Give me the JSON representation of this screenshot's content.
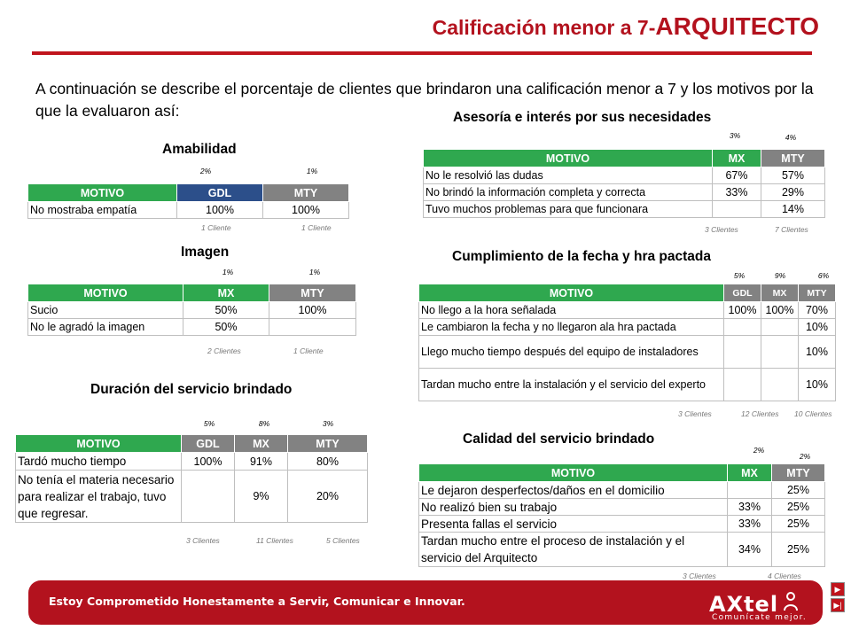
{
  "header": {
    "title_part1": "Calificación menor a 7-",
    "title_part2": "ARQUITECTO"
  },
  "intro": "A continuación se describe el porcentaje de clientes que brindaron una calificación menor a 7 y los motivos por la que la evaluaron así:",
  "amabilidad": {
    "title": "Amabilidad",
    "pcts": [
      "2%",
      "1%"
    ],
    "headers": [
      "MOTIVO",
      "GDL",
      "MTY"
    ],
    "rows": [
      [
        "No mostraba empatía",
        "100%",
        "100%"
      ]
    ],
    "clients": [
      "1 Cliente",
      "1 Cliente"
    ]
  },
  "imagen": {
    "title": "Imagen",
    "pcts": [
      "1%",
      "1%"
    ],
    "headers": [
      "MOTIVO",
      "MX",
      "MTY"
    ],
    "rows": [
      [
        "Sucio",
        "50%",
        "100%"
      ],
      [
        "No le agradó la imagen",
        "50%",
        ""
      ]
    ],
    "clients": [
      "2 Clientes",
      "1 Cliente"
    ]
  },
  "duracion": {
    "title": "Duración del servicio brindado",
    "pcts": [
      "5%",
      "8%",
      "3%"
    ],
    "headers": [
      "MOTIVO",
      "GDL",
      "MX",
      "MTY"
    ],
    "rows": [
      [
        "Tardó mucho tiempo",
        "100%",
        "91%",
        "80%"
      ],
      [
        "No tenía el materia necesario para realizar el trabajo, tuvo que regresar.",
        "",
        "9%",
        "20%"
      ]
    ],
    "clients": [
      "3 Clientes",
      "11 Clientes",
      "5 Clientes"
    ]
  },
  "asesoria": {
    "title": "Asesoría e interés por sus necesidades",
    "pcts": [
      "3%",
      "4%"
    ],
    "headers": [
      "MOTIVO",
      "MX",
      "MTY"
    ],
    "rows": [
      [
        "No le resolvió las dudas",
        "67%",
        "57%"
      ],
      [
        "No brindó la información completa y correcta",
        "33%",
        "29%"
      ],
      [
        "Tuvo muchos problemas para que funcionara",
        "",
        "14%"
      ]
    ],
    "clients": [
      "3 Clientes",
      "7 Clientes"
    ]
  },
  "cumplimiento": {
    "title": "Cumplimiento de la fecha y hra pactada",
    "pcts": [
      "5%",
      "9%",
      "6%"
    ],
    "headers": [
      "MOTIVO",
      "GDL",
      "MX",
      "MTY"
    ],
    "rows": [
      [
        "No llego a la hora señalada",
        "100%",
        "100%",
        "70%"
      ],
      [
        "Le cambiaron la fecha y no llegaron ala hra pactada",
        "",
        "",
        "10%"
      ],
      [
        "Llego mucho tiempo después del equipo de instaladores",
        "",
        "",
        "10%"
      ],
      [
        "Tardan mucho entre la instalación  y el servicio del experto",
        "",
        "",
        "10%"
      ]
    ],
    "clients": [
      "3 Clientes",
      "12 Clientes",
      "10 Clientes"
    ]
  },
  "calidad": {
    "title": "Calidad del servicio brindado",
    "pcts": [
      "2%",
      "2%"
    ],
    "headers": [
      "MOTIVO",
      "MX",
      "MTY"
    ],
    "rows": [
      [
        "Le dejaron desperfectos/daños en el domicilio",
        "",
        "25%"
      ],
      [
        "No realizó bien su trabajo",
        "33%",
        "25%"
      ],
      [
        "Presenta fallas el servicio",
        "33%",
        "25%"
      ],
      [
        "Tardan mucho entre el proceso de instalación y el servicio del Arquitecto",
        "34%",
        "25%"
      ]
    ],
    "clients": [
      "3 Clientes",
      "4 Clientes"
    ]
  },
  "footer": {
    "slogan": "Estoy Comprometido Honestamente a Servir, Comunicar e Innovar.",
    "logo": "AXtel",
    "tagline": "Comunícate mejor."
  },
  "colors": {
    "brand_red": "#b3121e",
    "header_green": "#2fa84f",
    "header_gray": "#828282",
    "header_navy": "#2c4f8a"
  },
  "icons": [
    "next-slide-icon",
    "last-slide-icon"
  ]
}
